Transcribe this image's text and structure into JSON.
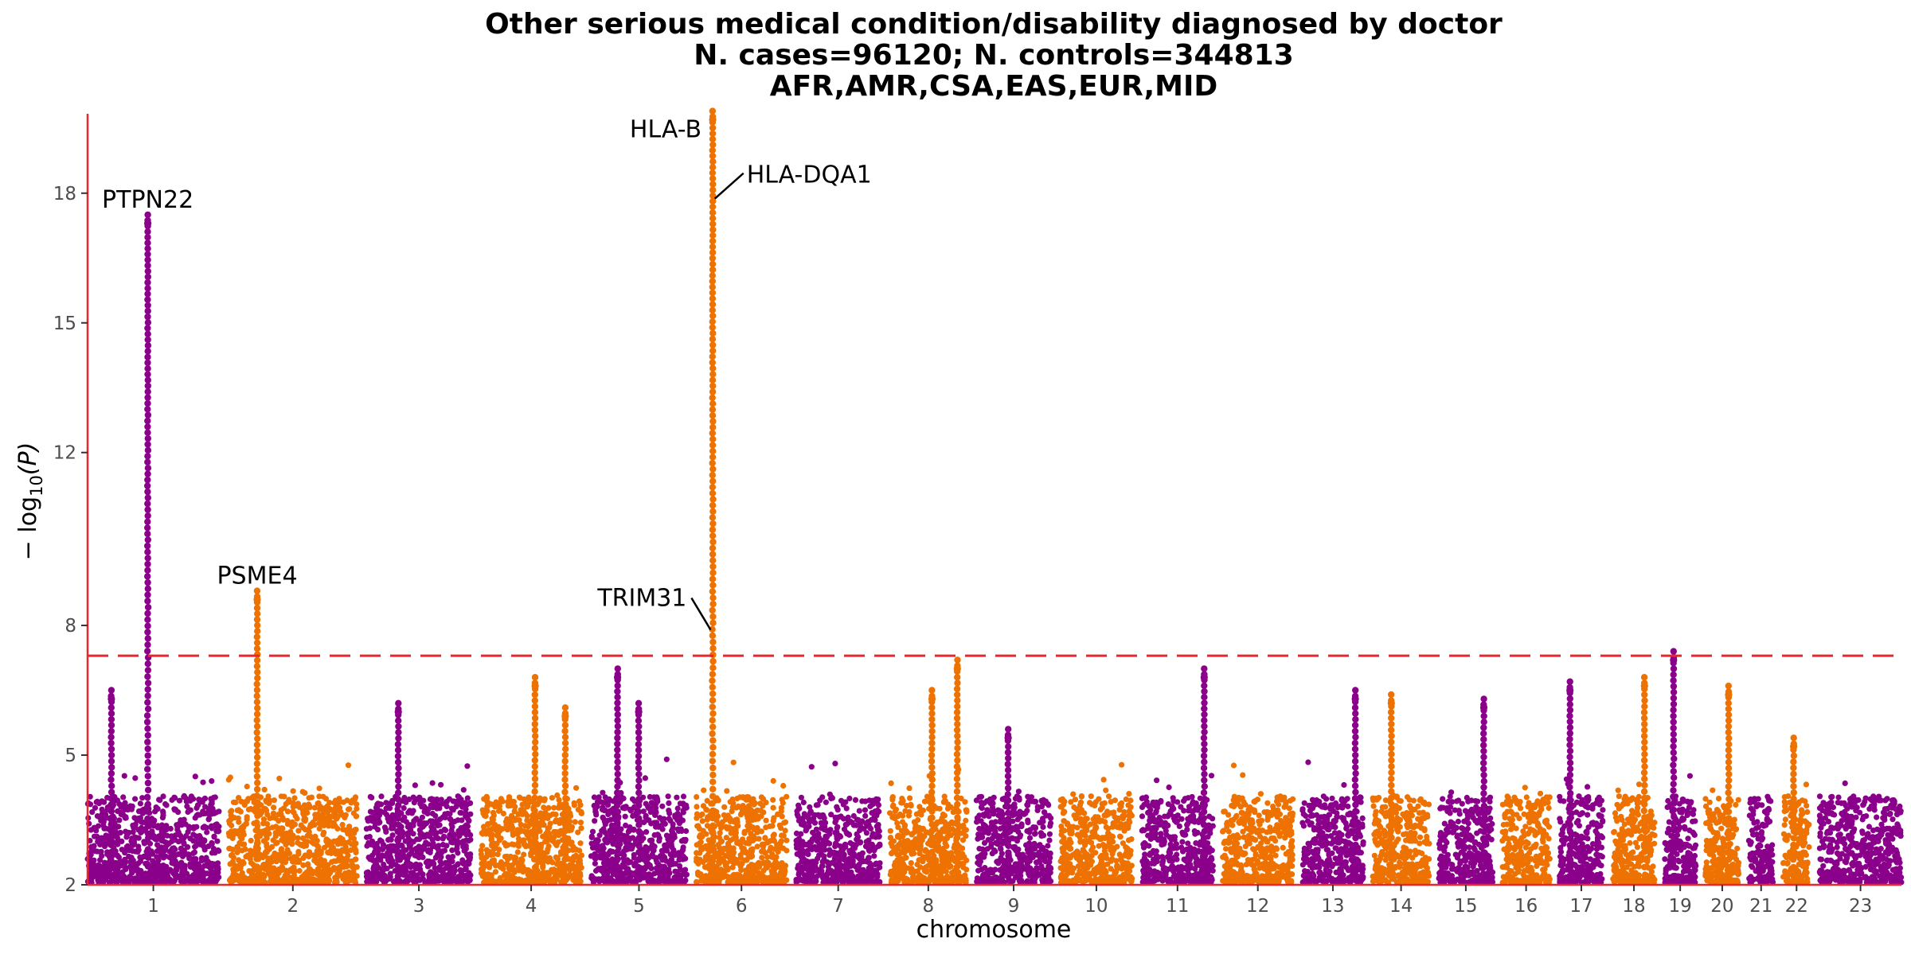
{
  "chart_data": {
    "type": "scatter",
    "subtype": "manhattan",
    "title": [
      "Other serious medical condition/disability diagnosed by doctor",
      "N. cases=96120; N. controls=344813",
      "AFR,AMR,CSA,EAS,EUR,MID"
    ],
    "xlabel": "chromosome",
    "ylabel": "−log10(P)",
    "ylabel_base": "− log",
    "ylabel_sub": "10",
    "ylabel_arg": "(P)",
    "ylim": [
      2,
      19.8
    ],
    "yticks": [
      2,
      5,
      8,
      12,
      15,
      18
    ],
    "significance_threshold": 7.3,
    "threshold_color": "#E8262E",
    "axis_color": "#E8262E",
    "colors": [
      "#8B008B",
      "#EE7202"
    ],
    "legend": "none",
    "grid": false,
    "chromosomes": [
      {
        "label": "1",
        "length": 249
      },
      {
        "label": "2",
        "length": 243
      },
      {
        "label": "3",
        "length": 198
      },
      {
        "label": "4",
        "length": 191
      },
      {
        "label": "5",
        "length": 181
      },
      {
        "label": "6",
        "length": 171
      },
      {
        "label": "7",
        "length": 159
      },
      {
        "label": "8",
        "length": 146
      },
      {
        "label": "9",
        "length": 141
      },
      {
        "label": "10",
        "length": 136
      },
      {
        "label": "11",
        "length": 135
      },
      {
        "label": "12",
        "length": 133
      },
      {
        "label": "13",
        "length": 115
      },
      {
        "label": "14",
        "length": 107
      },
      {
        "label": "15",
        "length": 102
      },
      {
        "label": "16",
        "length": 90
      },
      {
        "label": "17",
        "length": 83
      },
      {
        "label": "18",
        "length": 80
      },
      {
        "label": "19",
        "length": 59
      },
      {
        "label": "20",
        "length": 64
      },
      {
        "label": "21",
        "length": 47
      },
      {
        "label": "22",
        "length": 51
      },
      {
        "label": "23",
        "length": 155
      }
    ],
    "peaks": [
      {
        "chr": "1",
        "pos": 114,
        "max": 17.3
      },
      {
        "chr": "1",
        "pos": 45,
        "max": 6.3
      },
      {
        "chr": "2",
        "pos": 54,
        "max": 8.6
      },
      {
        "chr": "3",
        "pos": 60,
        "max": 6.0
      },
      {
        "chr": "4",
        "pos": 103,
        "max": 6.6
      },
      {
        "chr": "4",
        "pos": 160,
        "max": 5.9
      },
      {
        "chr": "5",
        "pos": 50,
        "max": 6.8
      },
      {
        "chr": "5",
        "pos": 90,
        "max": 6.0
      },
      {
        "chr": "6",
        "pos": 31,
        "max": 19.7
      },
      {
        "chr": "8",
        "pos": 80,
        "max": 6.3
      },
      {
        "chr": "8",
        "pos": 128,
        "max": 7.0
      },
      {
        "chr": "9",
        "pos": 60,
        "max": 5.4
      },
      {
        "chr": "11",
        "pos": 118,
        "max": 6.8
      },
      {
        "chr": "13",
        "pos": 100,
        "max": 6.3
      },
      {
        "chr": "14",
        "pos": 35,
        "max": 6.2
      },
      {
        "chr": "15",
        "pos": 85,
        "max": 6.1
      },
      {
        "chr": "17",
        "pos": 20,
        "max": 6.5
      },
      {
        "chr": "18",
        "pos": 60,
        "max": 6.6
      },
      {
        "chr": "19",
        "pos": 17,
        "max": 7.2
      },
      {
        "chr": "20",
        "pos": 44,
        "max": 6.4
      },
      {
        "chr": "22",
        "pos": 20,
        "max": 5.2
      }
    ],
    "annotations": [
      {
        "gene": "PTPN22",
        "chr": "1",
        "pos": 114,
        "y": 17.3
      },
      {
        "gene": "PSME4",
        "chr": "2",
        "pos": 54,
        "y": 8.6
      },
      {
        "gene": "HLA-B",
        "chr": "6",
        "pos": 31,
        "y": 19.7
      },
      {
        "gene": "HLA-DQA1",
        "chr": "6",
        "pos": 32,
        "y": 17.8
      },
      {
        "gene": "TRIM31",
        "chr": "6",
        "pos": 30,
        "y": 7.9
      }
    ]
  }
}
